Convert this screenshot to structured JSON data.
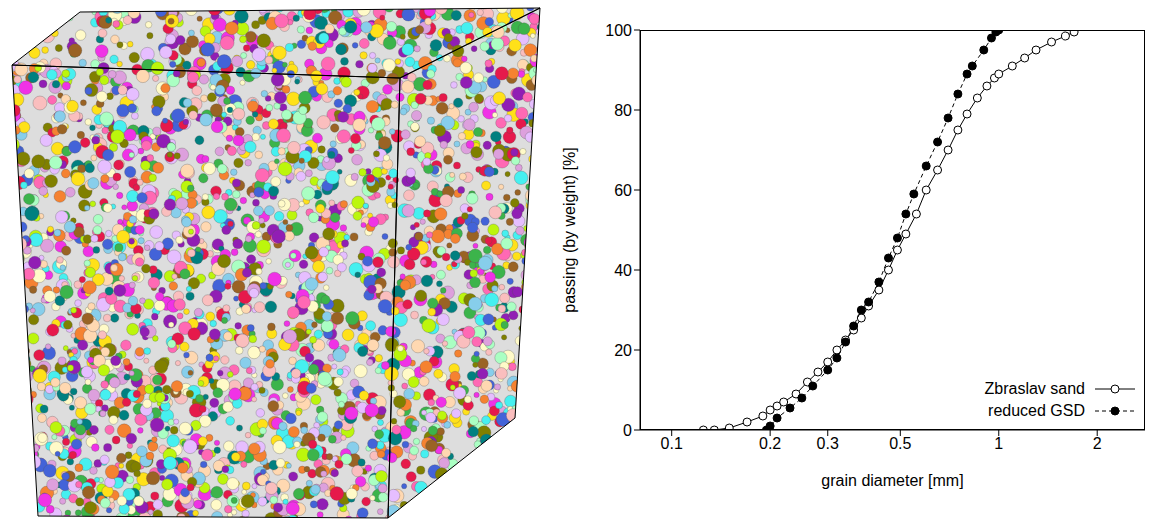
{
  "chart_data": {
    "type": "line",
    "xlabel": "grain diameter [mm]",
    "ylabel": "passing (by weight) [%]",
    "log": "x",
    "grid": false,
    "legend": "lower right",
    "xlim": [
      0.08,
      2.8
    ],
    "xticks": [
      0.1,
      0.2,
      0.3,
      0.5,
      1,
      2
    ],
    "ylim": [
      0,
      100
    ],
    "yticks": [
      0,
      20,
      40,
      60,
      80,
      100
    ],
    "series": [
      {
        "name": "Zbraslav sand",
        "color": "#000000",
        "marker": "open_circle",
        "line_style": "solid",
        "x": [
          0.125,
          0.135,
          0.15,
          0.17,
          0.19,
          0.2,
          0.21,
          0.22,
          0.24,
          0.26,
          0.28,
          0.3,
          0.32,
          0.34,
          0.36,
          0.38,
          0.4,
          0.43,
          0.46,
          0.49,
          0.52,
          0.56,
          0.6,
          0.65,
          0.7,
          0.75,
          0.8,
          0.86,
          0.92,
          0.97,
          1.0,
          1.1,
          1.2,
          1.3,
          1.45,
          1.6,
          1.7
        ],
        "values": [
          0,
          0,
          0.5,
          2,
          3.5,
          5,
          6,
          7,
          9,
          12,
          14.5,
          17,
          20,
          22.5,
          25,
          28,
          31,
          35,
          40,
          45,
          49,
          54,
          60,
          65,
          70,
          75,
          79,
          83,
          86,
          88,
          89,
          91,
          93,
          95,
          97,
          98.5,
          99.5
        ]
      },
      {
        "name": "reduced GSD",
        "color": "#000000",
        "marker": "filled_circle",
        "line_style": "dashed",
        "x": [
          0.195,
          0.2,
          0.21,
          0.23,
          0.25,
          0.27,
          0.3,
          0.32,
          0.34,
          0.36,
          0.38,
          0.4,
          0.43,
          0.46,
          0.49,
          0.52,
          0.55,
          0.6,
          0.65,
          0.7,
          0.75,
          0.8,
          0.83,
          0.9,
          0.95,
          0.98,
          1.0
        ],
        "values": [
          0,
          1,
          3,
          5.5,
          8,
          11,
          15,
          18,
          22,
          26,
          30,
          32,
          37,
          43,
          48,
          54,
          59,
          66,
          72,
          78,
          84,
          89,
          91,
          95,
          98,
          99.5,
          100
        ]
      }
    ]
  }
}
